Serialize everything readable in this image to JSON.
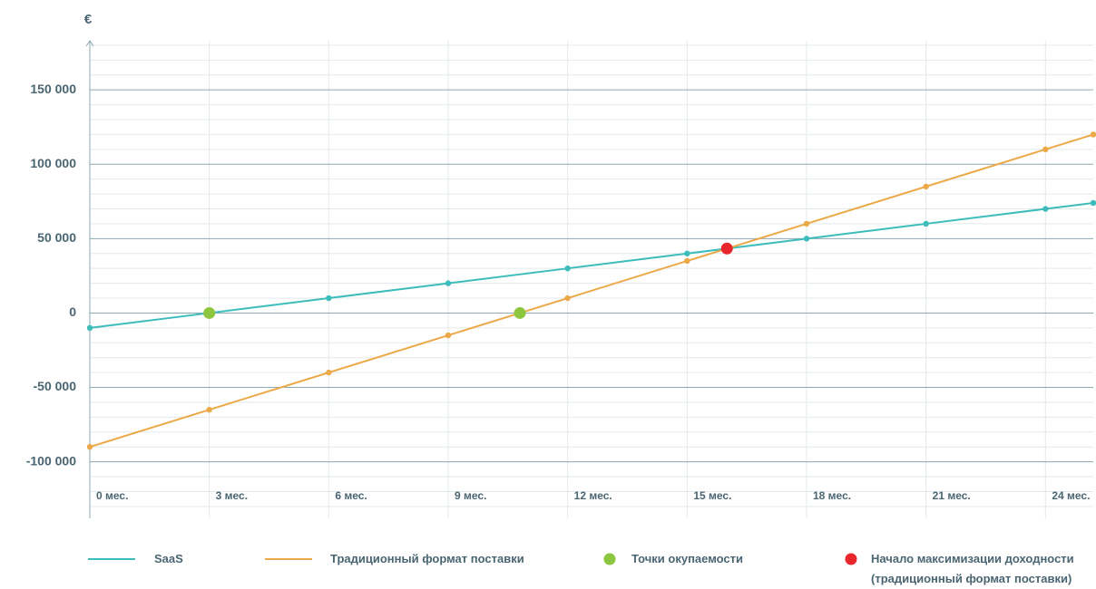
{
  "chart_data": {
    "type": "line",
    "y_label": "€",
    "x": [
      0,
      3,
      6,
      9,
      12,
      15,
      18,
      21,
      24,
      25.2
    ],
    "xlim": [
      0,
      25.2
    ],
    "xticks": [
      {
        "value": 0,
        "label": "0 мес."
      },
      {
        "value": 3,
        "label": "3 мес."
      },
      {
        "value": 6,
        "label": "6 мес."
      },
      {
        "value": 9,
        "label": "9 мес."
      },
      {
        "value": 12,
        "label": "12 мес."
      },
      {
        "value": 15,
        "label": "15 мес."
      },
      {
        "value": 18,
        "label": "18 мес."
      },
      {
        "value": 21,
        "label": "21 мес."
      },
      {
        "value": 24,
        "label": "24 мес."
      }
    ],
    "ylim": [
      -138000,
      183000
    ],
    "yticks": [
      {
        "value": -100000,
        "label": "-100 000"
      },
      {
        "value": -50000,
        "label": "-50 000"
      },
      0,
      {
        "value": 50000,
        "label": "50 000"
      },
      {
        "value": 100000,
        "label": "100 000"
      },
      {
        "value": 150000,
        "label": "150 000"
      }
    ],
    "minor_yticks": [
      -130000,
      -120000,
      -110000,
      -90000,
      -80000,
      -70000,
      -60000,
      -40000,
      -30000,
      -20000,
      -10000,
      10000,
      20000,
      30000,
      40000,
      60000,
      70000,
      80000,
      90000,
      110000,
      120000,
      130000,
      140000,
      160000,
      170000,
      180000
    ],
    "grid": true,
    "series": [
      {
        "name": "SaaS",
        "color": "#3dbcbc",
        "values": [
          -10000,
          0,
          10000,
          20000,
          30000,
          40000,
          50000,
          60000,
          70000,
          74000
        ]
      },
      {
        "name": "Традиционный формат поставки",
        "color": "#eca948",
        "values": [
          -90000,
          -65000,
          -40000,
          -15000,
          10000,
          35000,
          60000,
          85000,
          110000,
          120000
        ]
      }
    ],
    "markers": [
      {
        "name": "Точки окупаемости",
        "color": "#8cc63f",
        "x": [
          3,
          10.8
        ],
        "values": [
          0,
          0
        ]
      },
      {
        "name": "Начало максимизации доходности (традиционный формат поставки)",
        "color": "#e8262b",
        "x": [
          16
        ],
        "values": [
          43333
        ]
      }
    ]
  }
}
